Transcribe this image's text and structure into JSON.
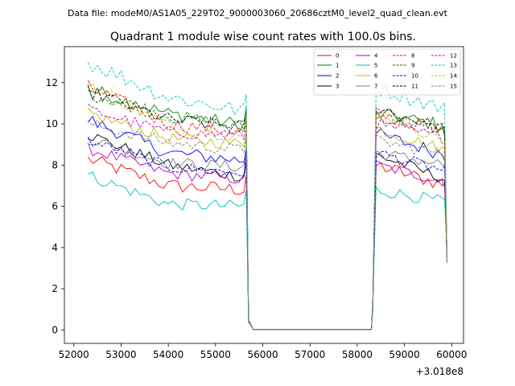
{
  "suptitle": "Data file: modeM0/AS1A05_229T02_9000003060_20686cztM0_level2_quad_clean.evt",
  "chart_data": {
    "type": "line",
    "title": "Quadrant 1 module wise count rates with 100.0s bins.",
    "xlabel": "",
    "ylabel": "",
    "x_offset_label": "+3.018e8",
    "xlim": [
      51800,
      60250
    ],
    "ylim": [
      -0.65,
      13.75
    ],
    "xticks": [
      52000,
      53000,
      54000,
      55000,
      56000,
      57000,
      58000,
      59000,
      60000
    ],
    "xtick_labels": [
      "52000",
      "53000",
      "54000",
      "55000",
      "56000",
      "57000",
      "58000",
      "59000",
      "60000"
    ],
    "yticks": [
      0,
      2,
      4,
      6,
      8,
      10,
      12
    ],
    "ytick_labels": [
      "0",
      "2",
      "4",
      "6",
      "8",
      "10",
      "12"
    ],
    "legend_position": "upper right",
    "time_segments": {
      "seg1_start": 52300,
      "seg1_end": 55700,
      "gap_start": 55800,
      "gap_end": 58300,
      "seg2_start": 58400,
      "seg2_end": 59900,
      "bin": 100
    },
    "series": [
      {
        "name": "0",
        "color": "#ff0000",
        "dash": "solid",
        "start": 8.3,
        "mid": 7.0,
        "end": 6.8,
        "r_start": 8.0,
        "r_end": 7.0,
        "noise": 0.35
      },
      {
        "name": "1",
        "color": "#008000",
        "dash": "solid",
        "start": 11.7,
        "mid": 10.5,
        "end": 9.9,
        "r_start": 10.5,
        "r_end": 9.9,
        "noise": 0.35
      },
      {
        "name": "2",
        "color": "#0000ff",
        "dash": "solid",
        "start": 10.2,
        "mid": 8.6,
        "end": 8.2,
        "r_start": 9.5,
        "r_end": 8.5,
        "noise": 0.35
      },
      {
        "name": "3",
        "color": "#000000",
        "dash": "solid",
        "start": 9.5,
        "mid": 8.0,
        "end": 7.4,
        "r_start": 8.5,
        "r_end": 7.3,
        "noise": 0.3
      },
      {
        "name": "4",
        "color": "#bf00bf",
        "dash": "solid",
        "start": 8.8,
        "mid": 7.6,
        "end": 7.3,
        "r_start": 8.0,
        "r_end": 7.2,
        "noise": 0.3
      },
      {
        "name": "5",
        "color": "#00bfbf",
        "dash": "solid",
        "start": 7.5,
        "mid": 6.1,
        "end": 6.0,
        "r_start": 6.8,
        "r_end": 6.2,
        "noise": 0.3
      },
      {
        "name": "6",
        "color": "#bfbf00",
        "dash": "solid",
        "start": 10.5,
        "mid": 9.3,
        "end": 9.0,
        "r_start": 9.8,
        "r_end": 8.7,
        "noise": 0.3
      },
      {
        "name": "7",
        "color": "#808080",
        "dash": "solid",
        "start": 9.3,
        "mid": 8.1,
        "end": 7.9,
        "r_start": 8.6,
        "r_end": 8.0,
        "noise": 0.3
      },
      {
        "name": "8",
        "color": "#ff0000",
        "dash": "dashed",
        "start": 11.8,
        "mid": 10.0,
        "end": 9.6,
        "r_start": 10.5,
        "r_end": 9.6,
        "noise": 0.35
      },
      {
        "name": "9",
        "color": "#008000",
        "dash": "dashed",
        "start": 11.5,
        "mid": 10.4,
        "end": 9.8,
        "r_start": 10.3,
        "r_end": 9.7,
        "noise": 0.35
      },
      {
        "name": "10",
        "color": "#0000ff",
        "dash": "dashed",
        "start": 9.2,
        "mid": 7.9,
        "end": 7.6,
        "r_start": 8.6,
        "r_end": 7.7,
        "noise": 0.3
      },
      {
        "name": "11",
        "color": "#000000",
        "dash": "dashed",
        "start": 11.6,
        "mid": 10.2,
        "end": 9.8,
        "r_start": 10.8,
        "r_end": 9.7,
        "noise": 0.35
      },
      {
        "name": "12",
        "color": "#bf00bf",
        "dash": "dashed",
        "start": 10.7,
        "mid": 9.6,
        "end": 9.4,
        "r_start": 10.0,
        "r_end": 9.3,
        "noise": 0.3
      },
      {
        "name": "13",
        "color": "#00bfbf",
        "dash": "dashed",
        "start": 13.0,
        "mid": 11.3,
        "end": 10.6,
        "r_start": 11.8,
        "r_end": 10.7,
        "noise": 0.4
      },
      {
        "name": "14",
        "color": "#bfbf00",
        "dash": "dashed",
        "start": 12.0,
        "mid": 9.9,
        "end": 9.4,
        "r_start": 10.6,
        "r_end": 9.2,
        "noise": 0.35
      },
      {
        "name": "15",
        "color": "#808080",
        "dash": "dashed",
        "start": 10.0,
        "mid": 9.1,
        "end": 8.7,
        "r_start": 9.2,
        "r_end": 8.5,
        "noise": 0.3
      }
    ]
  }
}
